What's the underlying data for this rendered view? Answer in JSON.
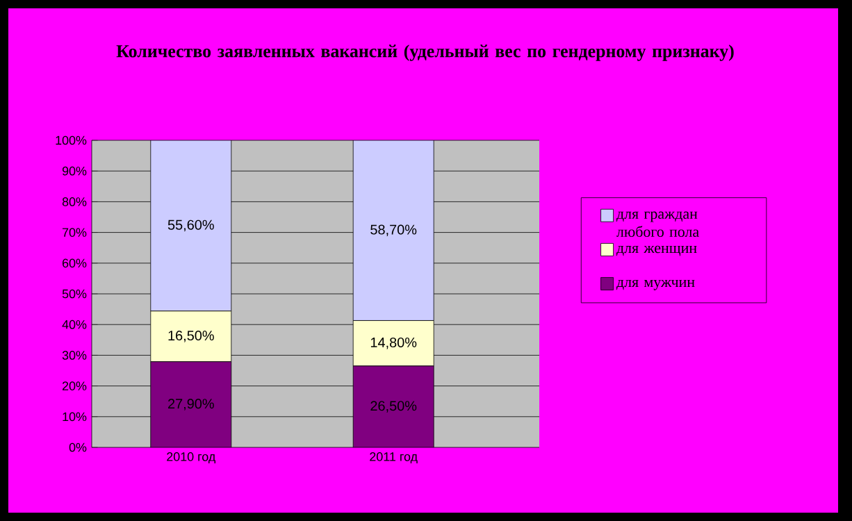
{
  "chart_data": {
    "type": "bar",
    "stacked": true,
    "title": "Количество заявленных вакансий (удельный вес по гендерному признаку)",
    "categories": [
      "2010 год",
      "2011 год"
    ],
    "series": [
      {
        "name": "для мужчин",
        "color": "#800080",
        "values": [
          27.9,
          26.5
        ],
        "value_labels": [
          "27,90%",
          "26,50%"
        ]
      },
      {
        "name": "для женщин",
        "color": "#ffffcc",
        "values": [
          16.5,
          14.8
        ],
        "value_labels": [
          "16,50%",
          "14,80%"
        ]
      },
      {
        "name": "для граждан любого пола",
        "color": "#ccccff",
        "values": [
          55.6,
          58.7
        ],
        "value_labels": [
          "55,60%",
          "58,70%"
        ]
      }
    ],
    "ylim": [
      0,
      100
    ],
    "yticks": [
      {
        "value": 0,
        "label": "0%"
      },
      {
        "value": 10,
        "label": "10%"
      },
      {
        "value": 20,
        "label": "20%"
      },
      {
        "value": 30,
        "label": "30%"
      },
      {
        "value": 40,
        "label": "40%"
      },
      {
        "value": 50,
        "label": "50%"
      },
      {
        "value": 60,
        "label": "60%"
      },
      {
        "value": 70,
        "label": "70%"
      },
      {
        "value": 80,
        "label": "80%"
      },
      {
        "value": 90,
        "label": "90%"
      },
      {
        "value": 100,
        "label": "100%"
      }
    ],
    "grid": "y",
    "legend": "right"
  }
}
